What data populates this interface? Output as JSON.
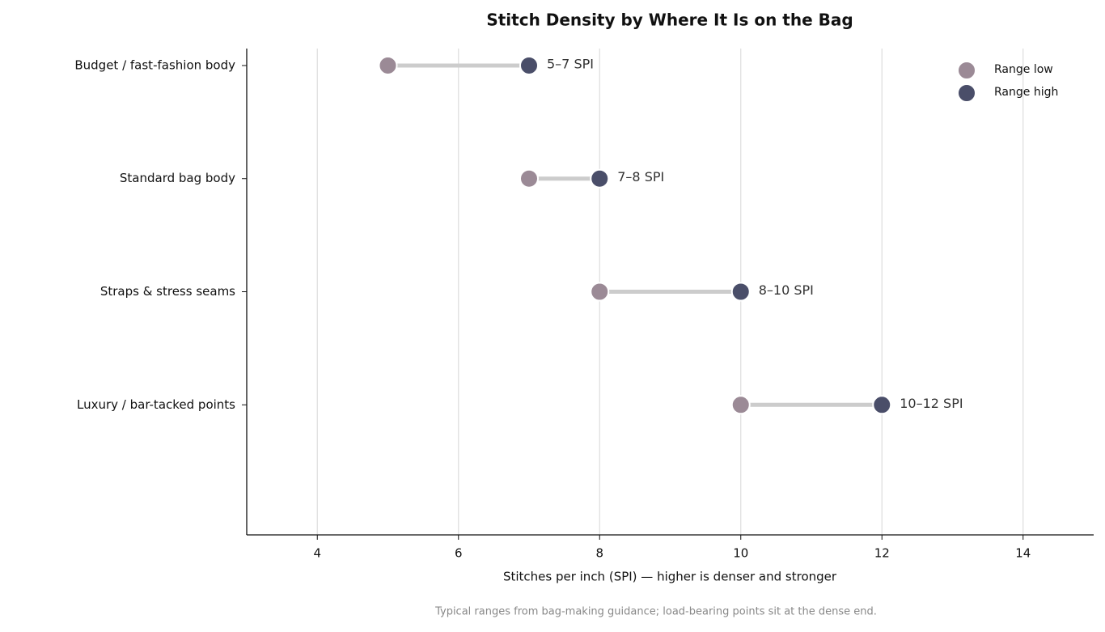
{
  "chart_data": {
    "type": "dumbbell",
    "title": "Stitch Density by Where It Is on the Bag",
    "x_label": "Stitches per inch (SPI) — higher is denser and stronger",
    "note": "Typical ranges from bag-making guidance; load-bearing points sit at the dense end.",
    "categories": [
      "Budget / fast-fashion body",
      "Standard bag body",
      "Straps & stress seams",
      "Luxury / bar-tacked points"
    ],
    "series": [
      {
        "name": "Range low",
        "color": "#9b8a96",
        "values": [
          5,
          7,
          8,
          10
        ]
      },
      {
        "name": "Range high",
        "color": "#4a4e69",
        "values": [
          7,
          8,
          10,
          12
        ]
      }
    ],
    "range_labels": [
      "5–7 SPI",
      "7–8 SPI",
      "8–10 SPI",
      "10–12 SPI"
    ],
    "connector_color": "#cccccc",
    "xlim": [
      3,
      15
    ],
    "xticks": [
      4,
      6,
      8,
      10,
      12,
      14
    ],
    "grid": true,
    "legend": "upper right"
  }
}
